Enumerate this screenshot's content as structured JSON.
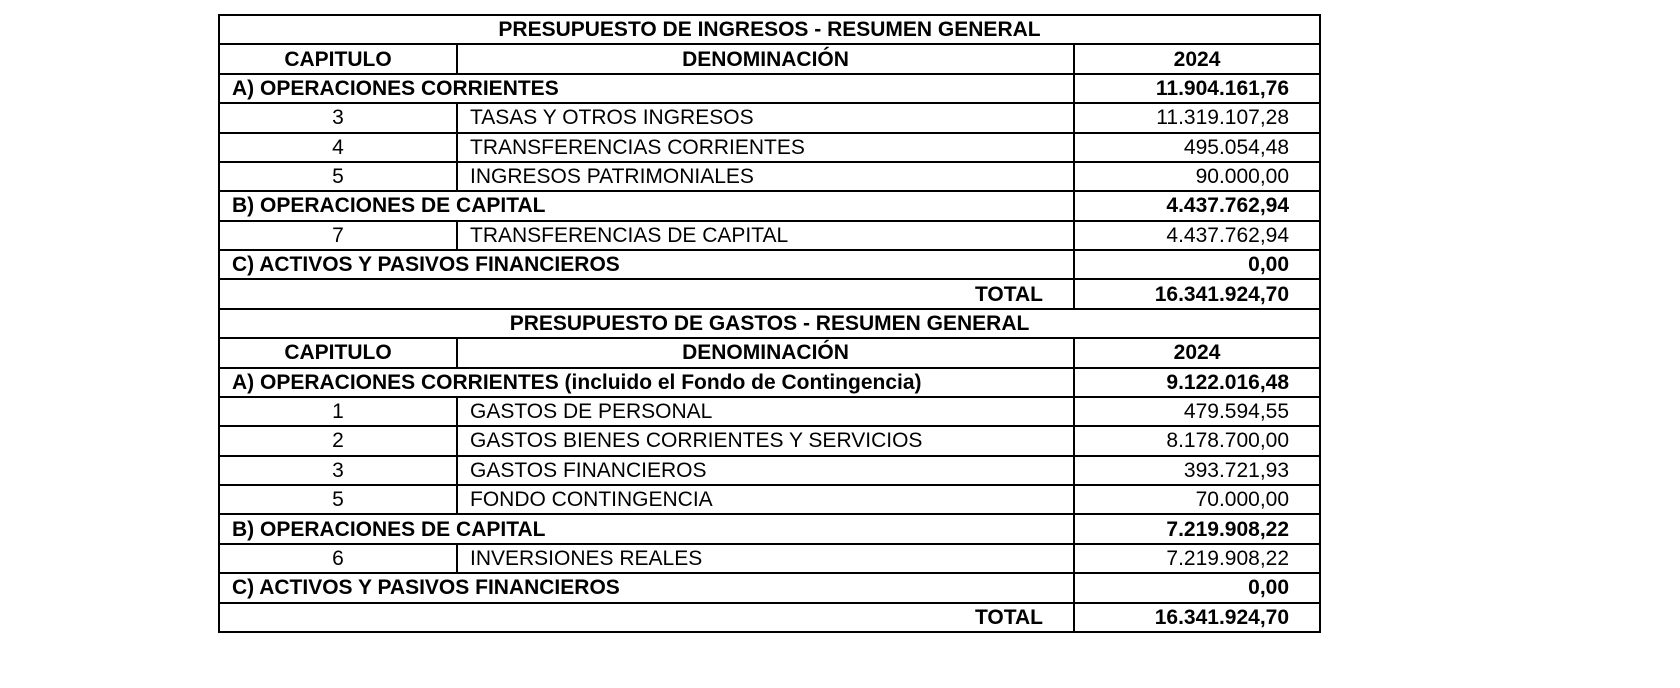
{
  "ingresos": {
    "title": "PRESUPUESTO DE INGRESOS - RESUMEN GENERAL",
    "headers": {
      "capitulo": "CAPITULO",
      "denominacion": "DENOMINACIÓN",
      "year": "2024"
    },
    "rows": [
      {
        "type": "section",
        "label": "A) OPERACIONES CORRIENTES",
        "value": "11.904.161,76"
      },
      {
        "type": "item",
        "cap": "3",
        "label": "TASAS Y OTROS INGRESOS",
        "value": "11.319.107,28"
      },
      {
        "type": "item",
        "cap": "4",
        "label": "TRANSFERENCIAS CORRIENTES",
        "value": "495.054,48"
      },
      {
        "type": "item",
        "cap": "5",
        "label": "INGRESOS PATRIMONIALES",
        "value": "90.000,00"
      },
      {
        "type": "section",
        "label": "B) OPERACIONES DE CAPITAL",
        "value": "4.437.762,94"
      },
      {
        "type": "item",
        "cap": "7",
        "label": "TRANSFERENCIAS DE CAPITAL",
        "value": "4.437.762,94"
      },
      {
        "type": "section",
        "label": "C) ACTIVOS Y PASIVOS FINANCIEROS",
        "value": "0,00"
      },
      {
        "type": "total",
        "label": "TOTAL",
        "value": "16.341.924,70"
      }
    ]
  },
  "gastos": {
    "title": "PRESUPUESTO DE GASTOS - RESUMEN GENERAL",
    "headers": {
      "capitulo": "CAPITULO",
      "denominacion": "DENOMINACIÓN",
      "year": "2024"
    },
    "rows": [
      {
        "type": "section",
        "label": "A) OPERACIONES CORRIENTES (incluido el Fondo de Contingencia)",
        "value": "9.122.016,48"
      },
      {
        "type": "item",
        "cap": "1",
        "label": "GASTOS DE PERSONAL",
        "value": "479.594,55"
      },
      {
        "type": "item",
        "cap": "2",
        "label": "GASTOS BIENES CORRIENTES Y SERVICIOS",
        "value": "8.178.700,00"
      },
      {
        "type": "item",
        "cap": "3",
        "label": "GASTOS FINANCIEROS",
        "value": "393.721,93"
      },
      {
        "type": "item",
        "cap": "5",
        "label": "FONDO CONTINGENCIA",
        "value": "70.000,00"
      },
      {
        "type": "section",
        "label": "B) OPERACIONES DE CAPITAL",
        "value": "7.219.908,22"
      },
      {
        "type": "item",
        "cap": "6",
        "label": "INVERSIONES REALES",
        "value": "7.219.908,22"
      },
      {
        "type": "section",
        "label": "C) ACTIVOS Y PASIVOS FINANCIEROS",
        "value": "0,00"
      },
      {
        "type": "total",
        "label": "TOTAL",
        "value": "16.341.924,70"
      }
    ]
  }
}
